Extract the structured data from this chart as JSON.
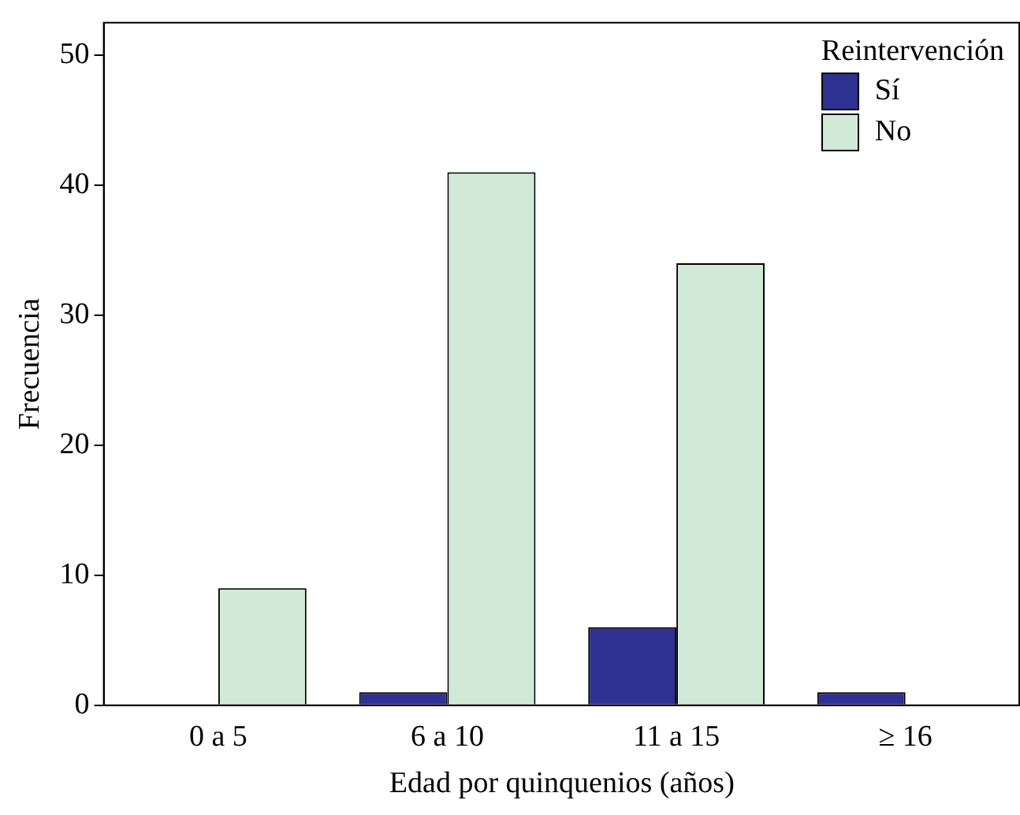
{
  "chart_data": {
    "type": "bar",
    "categories": [
      "0 a 5",
      "6 a 10",
      "11 a 15",
      "≥ 16"
    ],
    "series": [
      {
        "name": "Sí",
        "color": "#2e3192",
        "values": [
          0,
          1,
          6,
          1
        ]
      },
      {
        "name": "No",
        "color": "#d1ead8",
        "values": [
          9,
          41,
          34,
          0
        ]
      }
    ],
    "xlabel": "Edad por quinquenios (años)",
    "ylabel": "Frecuencia",
    "legend_title": "Reintervención",
    "legend": "top right",
    "ylim": [
      0,
      52.5
    ],
    "yticks": [
      0,
      10,
      20,
      30,
      40,
      50
    ],
    "grid": false
  }
}
